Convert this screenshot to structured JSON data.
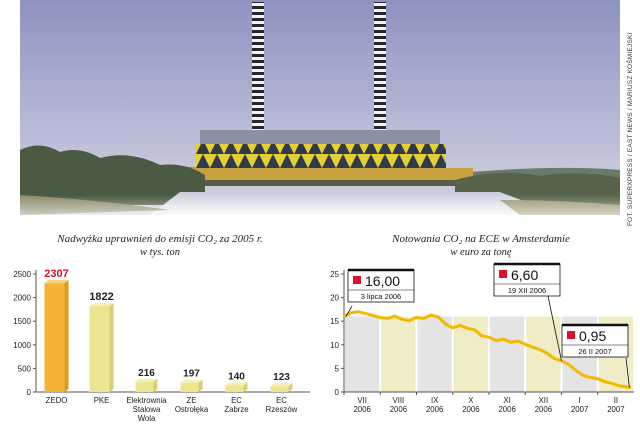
{
  "photo_credit": "FOT. SUPERXPRESS / EAST NEWS / MARIUSZ KOŚMIEJSKI",
  "chart_data": [
    {
      "type": "bar",
      "title": "Nadwyżka uprawnień do emisji CO₂ za 2005 r.",
      "subtitle": "w tys. ton",
      "categories": [
        "ZEDO",
        "PKE",
        "Elektrownia Stalowa Wola",
        "ZE Ostrołęka",
        "EC Zabrze",
        "EC Rzeszów"
      ],
      "category_lines": [
        [
          "ZEDO"
        ],
        [
          "PKE"
        ],
        [
          "Elektrownia",
          "Stalowa",
          "Wola"
        ],
        [
          "ZE",
          "Ostrołęka"
        ],
        [
          "EC",
          "Zabrze"
        ],
        [
          "EC",
          "Rzeszów"
        ]
      ],
      "values": [
        2307,
        1822,
        216,
        197,
        140,
        123
      ],
      "value_labels": [
        "2307",
        "1822",
        "216",
        "197",
        "140",
        "123"
      ],
      "highlight_index": 0,
      "yticks": [
        "0",
        "500",
        "1000",
        "1500",
        "2000",
        "2500"
      ],
      "ylim": [
        0,
        2500
      ],
      "colors": {
        "bar_top": "#f6c24a",
        "bar_first": "#f5b335",
        "bar_other": "#ece693",
        "highlight": "#d9112a",
        "axis": "#555555"
      }
    },
    {
      "type": "line",
      "title": "Notowania CO₂ na ECE w Amsterdamie",
      "subtitle": "w euro za tonę",
      "ylim": [
        0,
        25
      ],
      "yticks": [
        "0",
        "5",
        "10",
        "15",
        "20",
        "25"
      ],
      "months": [
        {
          "label": [
            "VII",
            "2006"
          ]
        },
        {
          "label": [
            "VIII",
            "2006"
          ]
        },
        {
          "label": [
            "IX",
            "2006"
          ]
        },
        {
          "label": [
            "X",
            "2006"
          ]
        },
        {
          "label": [
            "XI",
            "2006"
          ]
        },
        {
          "label": [
            "XII",
            "2006"
          ]
        },
        {
          "label": [
            "I",
            "2007"
          ]
        },
        {
          "label": [
            "II",
            "2007"
          ]
        }
      ],
      "x": [
        0.0,
        0.2,
        0.4,
        0.6,
        0.8,
        1.0,
        1.2,
        1.4,
        1.6,
        1.8,
        2.0,
        2.2,
        2.4,
        2.6,
        2.8,
        3.0,
        3.2,
        3.4,
        3.6,
        3.8,
        4.0,
        4.2,
        4.4,
        4.6,
        4.8,
        5.0,
        5.2,
        5.4,
        5.6,
        5.8,
        6.0,
        6.2,
        6.4,
        6.6,
        6.8,
        7.0,
        7.2,
        7.4,
        7.6,
        7.9
      ],
      "y": [
        16.0,
        16.8,
        17.0,
        16.6,
        16.2,
        15.8,
        15.6,
        16.1,
        15.4,
        15.1,
        15.8,
        15.6,
        16.3,
        15.9,
        14.4,
        13.6,
        14.1,
        13.5,
        13.2,
        11.9,
        11.6,
        10.9,
        11.2,
        10.5,
        10.8,
        10.1,
        9.5,
        9.0,
        8.2,
        7.1,
        6.6,
        5.8,
        4.6,
        3.5,
        3.1,
        2.8,
        2.2,
        1.8,
        1.3,
        0.95
      ],
      "annotations": [
        {
          "value": "16,00",
          "date": "3 lipca 2006",
          "x": 0.0,
          "y": 16.0
        },
        {
          "value": "6,60",
          "date": "19 XII 2006",
          "x": 6.0,
          "y": 6.6
        },
        {
          "value": "0,95",
          "date": "26 II 2007",
          "x": 7.9,
          "y": 0.95
        }
      ],
      "colors": {
        "line": "#f5b800",
        "band_a": "#e4e4e4",
        "band_b": "#efecc6",
        "marker": "#d9112a",
        "axis": "#555555"
      }
    }
  ]
}
